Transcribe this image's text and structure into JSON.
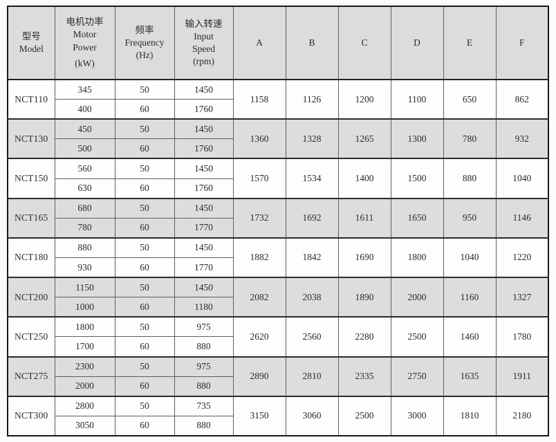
{
  "table": {
    "columns": [
      {
        "id": "model",
        "lines": [
          "型号",
          "Model"
        ]
      },
      {
        "id": "power",
        "lines": [
          "电机功率",
          "Motor",
          "Power",
          "(kW)"
        ],
        "unit_line_index": 3
      },
      {
        "id": "frequency",
        "lines": [
          "频率",
          "Frequency",
          "(Hz)"
        ]
      },
      {
        "id": "speed",
        "lines": [
          "输入转速",
          "Input",
          "Speed",
          "(rpm)"
        ]
      },
      {
        "id": "A",
        "lines": [
          "A"
        ]
      },
      {
        "id": "B",
        "lines": [
          "B"
        ]
      },
      {
        "id": "C",
        "lines": [
          "C"
        ]
      },
      {
        "id": "D",
        "lines": [
          "D"
        ]
      },
      {
        "id": "E",
        "lines": [
          "E"
        ]
      },
      {
        "id": "F",
        "lines": [
          "F"
        ]
      }
    ],
    "groups": [
      {
        "model": "NCT110",
        "shaded": false,
        "rows": [
          {
            "power": "345",
            "frequency": "50",
            "speed": "1450"
          },
          {
            "power": "400",
            "frequency": "60",
            "speed": "1760"
          }
        ],
        "dims": {
          "A": "1158",
          "B": "1126",
          "C": "1200",
          "D": "1100",
          "E": "650",
          "F": "862"
        }
      },
      {
        "model": "NCT130",
        "shaded": true,
        "rows": [
          {
            "power": "450",
            "frequency": "50",
            "speed": "1450"
          },
          {
            "power": "500",
            "frequency": "60",
            "speed": "1760"
          }
        ],
        "dims": {
          "A": "1360",
          "B": "1328",
          "C": "1265",
          "D": "1300",
          "E": "780",
          "F": "932"
        }
      },
      {
        "model": "NCT150",
        "shaded": false,
        "rows": [
          {
            "power": "560",
            "frequency": "50",
            "speed": "1450"
          },
          {
            "power": "630",
            "frequency": "60",
            "speed": "1760"
          }
        ],
        "dims": {
          "A": "1570",
          "B": "1534",
          "C": "1400",
          "D": "1500",
          "E": "880",
          "F": "1040"
        }
      },
      {
        "model": "NCT165",
        "shaded": true,
        "rows": [
          {
            "power": "680",
            "frequency": "50",
            "speed": "1450"
          },
          {
            "power": "780",
            "frequency": "60",
            "speed": "1770"
          }
        ],
        "dims": {
          "A": "1732",
          "B": "1692",
          "C": "1611",
          "D": "1650",
          "E": "950",
          "F": "1146"
        }
      },
      {
        "model": "NCT180",
        "shaded": false,
        "rows": [
          {
            "power": "880",
            "frequency": "50",
            "speed": "1450"
          },
          {
            "power": "930",
            "frequency": "60",
            "speed": "1770"
          }
        ],
        "dims": {
          "A": "1882",
          "B": "1842",
          "C": "1690",
          "D": "1800",
          "E": "1040",
          "F": "1220"
        }
      },
      {
        "model": "NCT200",
        "shaded": true,
        "rows": [
          {
            "power": "1150",
            "frequency": "50",
            "speed": "1450"
          },
          {
            "power": "1000",
            "frequency": "60",
            "speed": "1180"
          }
        ],
        "dims": {
          "A": "2082",
          "B": "2038",
          "C": "1890",
          "D": "2000",
          "E": "1160",
          "F": "1327"
        }
      },
      {
        "model": "NCT250",
        "shaded": false,
        "rows": [
          {
            "power": "1800",
            "frequency": "50",
            "speed": "975"
          },
          {
            "power": "1700",
            "frequency": "60",
            "speed": "880"
          }
        ],
        "dims": {
          "A": "2620",
          "B": "2560",
          "C": "2280",
          "D": "2500",
          "E": "1460",
          "F": "1780"
        }
      },
      {
        "model": "NCT275",
        "shaded": true,
        "rows": [
          {
            "power": "2300",
            "frequency": "50",
            "speed": "975"
          },
          {
            "power": "2000",
            "frequency": "60",
            "speed": "880"
          }
        ],
        "dims": {
          "A": "2890",
          "B": "2810",
          "C": "2335",
          "D": "2750",
          "E": "1635",
          "F": "1911"
        }
      },
      {
        "model": "NCT300",
        "shaded": false,
        "rows": [
          {
            "power": "2800",
            "frequency": "50",
            "speed": "735"
          },
          {
            "power": "3050",
            "frequency": "60",
            "speed": "880"
          }
        ],
        "dims": {
          "A": "3150",
          "B": "3060",
          "C": "2500",
          "D": "3000",
          "E": "1810",
          "F": "2180"
        }
      }
    ]
  },
  "colors": {
    "header_bg": "#dcdcdc",
    "shaded_row_bg": "#dedddc",
    "plain_row_bg": "#fdfdfc",
    "outer_border": "#171717",
    "inner_border": "#5d5d5d",
    "text": "#2b2b2b"
  }
}
